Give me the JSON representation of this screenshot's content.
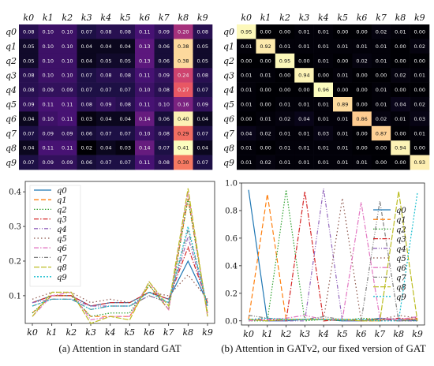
{
  "captions": {
    "left": "(a) Attention in standard GAT",
    "right": "(b) Attention in GATv2, our fixed version of GAT"
  },
  "keys": [
    "k0",
    "k1",
    "k2",
    "k3",
    "k4",
    "k5",
    "k6",
    "k7",
    "k8",
    "k9"
  ],
  "queries": [
    "q0",
    "q1",
    "q2",
    "q3",
    "q4",
    "q5",
    "q6",
    "q7",
    "q8",
    "q9"
  ],
  "series_colors": [
    "#1f77b4",
    "#ff7f0e",
    "#2ca02c",
    "#d62728",
    "#9467bd",
    "#8c564b",
    "#e377c2",
    "#7f7f7f",
    "#bcbd22",
    "#17becf"
  ],
  "chart_data": [
    {
      "type": "heatmap",
      "title": "",
      "x_labels": [
        "k0",
        "k1",
        "k2",
        "k3",
        "k4",
        "k5",
        "k6",
        "k7",
        "k8",
        "k9"
      ],
      "y_labels": [
        "q0",
        "q1",
        "q2",
        "q3",
        "q4",
        "q5",
        "q6",
        "q7",
        "q8",
        "q9"
      ],
      "values": [
        [
          0.08,
          0.1,
          0.1,
          0.07,
          0.08,
          0.08,
          0.11,
          0.09,
          0.2,
          0.08
        ],
        [
          0.05,
          0.1,
          0.1,
          0.04,
          0.04,
          0.04,
          0.13,
          0.06,
          0.38,
          0.05
        ],
        [
          0.05,
          0.1,
          0.1,
          0.04,
          0.05,
          0.05,
          0.13,
          0.06,
          0.38,
          0.05
        ],
        [
          0.08,
          0.1,
          0.1,
          0.07,
          0.08,
          0.08,
          0.11,
          0.09,
          0.24,
          0.08
        ],
        [
          0.08,
          0.09,
          0.09,
          0.07,
          0.07,
          0.07,
          0.1,
          0.08,
          0.27,
          0.07
        ],
        [
          0.09,
          0.11,
          0.11,
          0.08,
          0.09,
          0.08,
          0.11,
          0.1,
          0.16,
          0.09
        ],
        [
          0.04,
          0.1,
          0.11,
          0.03,
          0.04,
          0.04,
          0.14,
          0.06,
          0.4,
          0.04
        ],
        [
          0.07,
          0.09,
          0.09,
          0.06,
          0.07,
          0.07,
          0.1,
          0.08,
          0.29,
          0.07
        ],
        [
          0.04,
          0.11,
          0.11,
          0.02,
          0.04,
          0.03,
          0.14,
          0.07,
          0.41,
          0.04
        ],
        [
          0.07,
          0.09,
          0.09,
          0.06,
          0.07,
          0.07,
          0.11,
          0.08,
          0.3,
          0.07
        ]
      ]
    },
    {
      "type": "heatmap",
      "title": "",
      "x_labels": [
        "k0",
        "k1",
        "k2",
        "k3",
        "k4",
        "k5",
        "k6",
        "k7",
        "k8",
        "k9"
      ],
      "y_labels": [
        "q0",
        "q1",
        "q2",
        "q3",
        "q4",
        "q5",
        "q6",
        "q7",
        "q8",
        "q9"
      ],
      "values": [
        [
          0.95,
          0.0,
          0.0,
          0.01,
          0.01,
          0.0,
          0.0,
          0.02,
          0.01,
          0.0
        ],
        [
          0.01,
          0.92,
          0.01,
          0.01,
          0.01,
          0.01,
          0.01,
          0.01,
          0.0,
          0.02
        ],
        [
          0.0,
          0.0,
          0.95,
          0.0,
          0.01,
          0.0,
          0.02,
          0.01,
          0.0,
          0.0
        ],
        [
          0.01,
          0.01,
          0.0,
          0.94,
          0.0,
          0.01,
          0.0,
          0.0,
          0.02,
          0.01
        ],
        [
          0.01,
          0.0,
          0.0,
          0.0,
          0.96,
          0.0,
          0.0,
          0.01,
          0.0,
          0.0
        ],
        [
          0.01,
          0.0,
          0.01,
          0.01,
          0.01,
          0.89,
          0.0,
          0.01,
          0.04,
          0.02
        ],
        [
          0.0,
          0.01,
          0.02,
          0.04,
          0.01,
          0.01,
          0.86,
          0.02,
          0.01,
          0.03
        ],
        [
          0.04,
          0.02,
          0.01,
          0.01,
          0.03,
          0.01,
          0.0,
          0.87,
          0.0,
          0.01
        ],
        [
          0.01,
          0.0,
          0.01,
          0.01,
          0.01,
          0.01,
          0.0,
          0.0,
          0.94,
          0.0
        ],
        [
          0.01,
          0.02,
          0.01,
          0.01,
          0.01,
          0.01,
          0.01,
          0.0,
          0.0,
          0.93
        ]
      ]
    },
    {
      "type": "line",
      "title": "",
      "categories": [
        "k0",
        "k1",
        "k2",
        "k3",
        "k4",
        "k5",
        "k6",
        "k7",
        "k8",
        "k9"
      ],
      "ylim": [
        0.02,
        0.43
      ],
      "yticks": [
        0.1,
        0.2,
        0.3,
        0.4
      ],
      "legend": "top-left",
      "series": [
        {
          "name": "q0",
          "values": [
            0.08,
            0.1,
            0.1,
            0.07,
            0.08,
            0.08,
            0.11,
            0.09,
            0.2,
            0.08
          ]
        },
        {
          "name": "q1",
          "values": [
            0.05,
            0.1,
            0.1,
            0.04,
            0.04,
            0.04,
            0.13,
            0.06,
            0.38,
            0.05
          ]
        },
        {
          "name": "q2",
          "values": [
            0.05,
            0.1,
            0.1,
            0.04,
            0.05,
            0.05,
            0.13,
            0.06,
            0.38,
            0.05
          ]
        },
        {
          "name": "q3",
          "values": [
            0.08,
            0.1,
            0.1,
            0.07,
            0.08,
            0.08,
            0.11,
            0.09,
            0.24,
            0.08
          ]
        },
        {
          "name": "q4",
          "values": [
            0.08,
            0.09,
            0.09,
            0.07,
            0.07,
            0.07,
            0.1,
            0.08,
            0.27,
            0.07
          ]
        },
        {
          "name": "q5",
          "values": [
            0.09,
            0.11,
            0.11,
            0.08,
            0.09,
            0.08,
            0.11,
            0.1,
            0.16,
            0.09
          ]
        },
        {
          "name": "q6",
          "values": [
            0.04,
            0.1,
            0.11,
            0.03,
            0.04,
            0.04,
            0.14,
            0.06,
            0.4,
            0.04
          ]
        },
        {
          "name": "q7",
          "values": [
            0.07,
            0.09,
            0.09,
            0.06,
            0.07,
            0.07,
            0.1,
            0.08,
            0.29,
            0.07
          ]
        },
        {
          "name": "q8",
          "values": [
            0.04,
            0.11,
            0.11,
            0.02,
            0.04,
            0.03,
            0.14,
            0.07,
            0.41,
            0.04
          ]
        },
        {
          "name": "q9",
          "values": [
            0.07,
            0.09,
            0.09,
            0.06,
            0.07,
            0.07,
            0.11,
            0.08,
            0.3,
            0.07
          ]
        }
      ]
    },
    {
      "type": "line",
      "title": "",
      "categories": [
        "k0",
        "k1",
        "k2",
        "k3",
        "k4",
        "k5",
        "k6",
        "k7",
        "k8",
        "k9"
      ],
      "ylim": [
        -0.03,
        1.0
      ],
      "yticks": [
        0.0,
        0.2,
        0.4,
        0.6,
        0.8,
        1.0
      ],
      "legend": "right",
      "series": [
        {
          "name": "q0",
          "values": [
            0.95,
            0.0,
            0.0,
            0.01,
            0.01,
            0.0,
            0.0,
            0.02,
            0.01,
            0.0
          ]
        },
        {
          "name": "q1",
          "values": [
            0.01,
            0.92,
            0.01,
            0.01,
            0.01,
            0.01,
            0.01,
            0.01,
            0.0,
            0.02
          ]
        },
        {
          "name": "q2",
          "values": [
            0.0,
            0.0,
            0.95,
            0.0,
            0.01,
            0.0,
            0.02,
            0.01,
            0.0,
            0.0
          ]
        },
        {
          "name": "q3",
          "values": [
            0.01,
            0.01,
            0.0,
            0.94,
            0.0,
            0.01,
            0.0,
            0.0,
            0.02,
            0.01
          ]
        },
        {
          "name": "q4",
          "values": [
            0.01,
            0.0,
            0.0,
            0.0,
            0.96,
            0.0,
            0.0,
            0.01,
            0.0,
            0.0
          ]
        },
        {
          "name": "q5",
          "values": [
            0.01,
            0.0,
            0.01,
            0.01,
            0.01,
            0.89,
            0.0,
            0.01,
            0.04,
            0.02
          ]
        },
        {
          "name": "q6",
          "values": [
            0.0,
            0.01,
            0.02,
            0.04,
            0.01,
            0.01,
            0.86,
            0.02,
            0.01,
            0.03
          ]
        },
        {
          "name": "q7",
          "values": [
            0.04,
            0.02,
            0.01,
            0.01,
            0.03,
            0.01,
            0.0,
            0.87,
            0.0,
            0.01
          ]
        },
        {
          "name": "q8",
          "values": [
            0.01,
            0.0,
            0.01,
            0.01,
            0.01,
            0.01,
            0.0,
            0.0,
            0.94,
            0.0
          ]
        },
        {
          "name": "q9",
          "values": [
            0.01,
            0.02,
            0.01,
            0.01,
            0.01,
            0.01,
            0.01,
            0.0,
            0.0,
            0.93
          ]
        }
      ]
    }
  ]
}
